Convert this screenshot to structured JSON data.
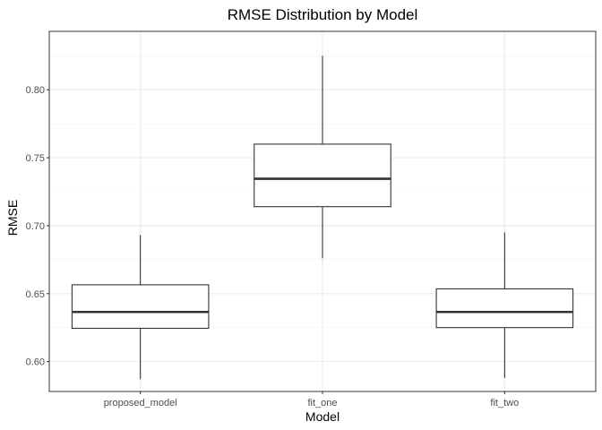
{
  "chart_data": {
    "type": "box",
    "title": "RMSE Distribution by Model",
    "xlabel": "Model",
    "ylabel": "RMSE",
    "ylim": [
      0.578,
      0.843
    ],
    "y_ticks": [
      "0.60",
      "0.65",
      "0.70",
      "0.75",
      "0.80"
    ],
    "y_tick_values": [
      0.6,
      0.65,
      0.7,
      0.75,
      0.8
    ],
    "y_minor_values": [
      0.625,
      0.675,
      0.725,
      0.775,
      0.825
    ],
    "categories": [
      "proposed_model",
      "fit_one",
      "fit_two"
    ],
    "boxes": [
      {
        "category": "proposed_model",
        "min": 0.587,
        "q1": 0.6245,
        "median": 0.6365,
        "q3": 0.6565,
        "max": 0.693
      },
      {
        "category": "fit_one",
        "min": 0.676,
        "q1": 0.714,
        "median": 0.7345,
        "q3": 0.76,
        "max": 0.825
      },
      {
        "category": "fit_two",
        "min": 0.588,
        "q1": 0.625,
        "median": 0.6365,
        "q3": 0.6535,
        "max": 0.695
      }
    ],
    "grid": true,
    "theme": "bw"
  }
}
